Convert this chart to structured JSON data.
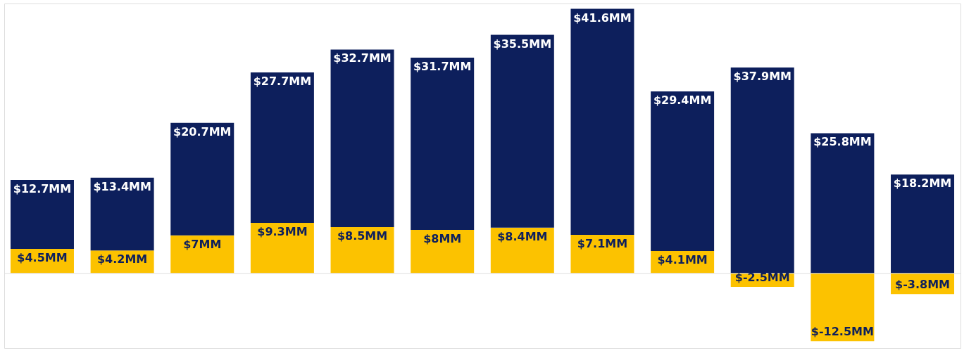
{
  "chart_data": {
    "type": "bar",
    "stacked": true,
    "categories": [
      null,
      null,
      null,
      null,
      null,
      null,
      null,
      null,
      null,
      null,
      null,
      null
    ],
    "series": [
      {
        "color": "#fcc200",
        "values": [
          4.5,
          4.2,
          7,
          9.3,
          8.5,
          8,
          8.4,
          7.1,
          4.1,
          -2.5,
          -12.5,
          -3.8
        ],
        "value_labels": [
          "$4.5MM",
          "$4.2MM",
          "$7MM",
          "$9.3MM",
          "$8.5MM",
          "$8MM",
          "$8.4MM",
          "$7.1MM",
          "$4.1MM",
          "$-2.5MM",
          "$-12.5MM",
          "$-3.8MM"
        ]
      },
      {
        "color": "#0d1f5c",
        "values": [
          12.7,
          13.4,
          20.7,
          27.7,
          32.7,
          31.7,
          35.5,
          41.6,
          29.4,
          37.9,
          25.8,
          18.2
        ],
        "value_labels": [
          "$12.7MM",
          "$13.4MM",
          "$20.7MM",
          "$27.7MM",
          "$32.7MM",
          "$31.7MM",
          "$35.5MM",
          "$41.6MM",
          "$29.4MM",
          "$37.9MM",
          "$25.8MM",
          "$18.2MM"
        ]
      }
    ],
    "grid": false
  }
}
